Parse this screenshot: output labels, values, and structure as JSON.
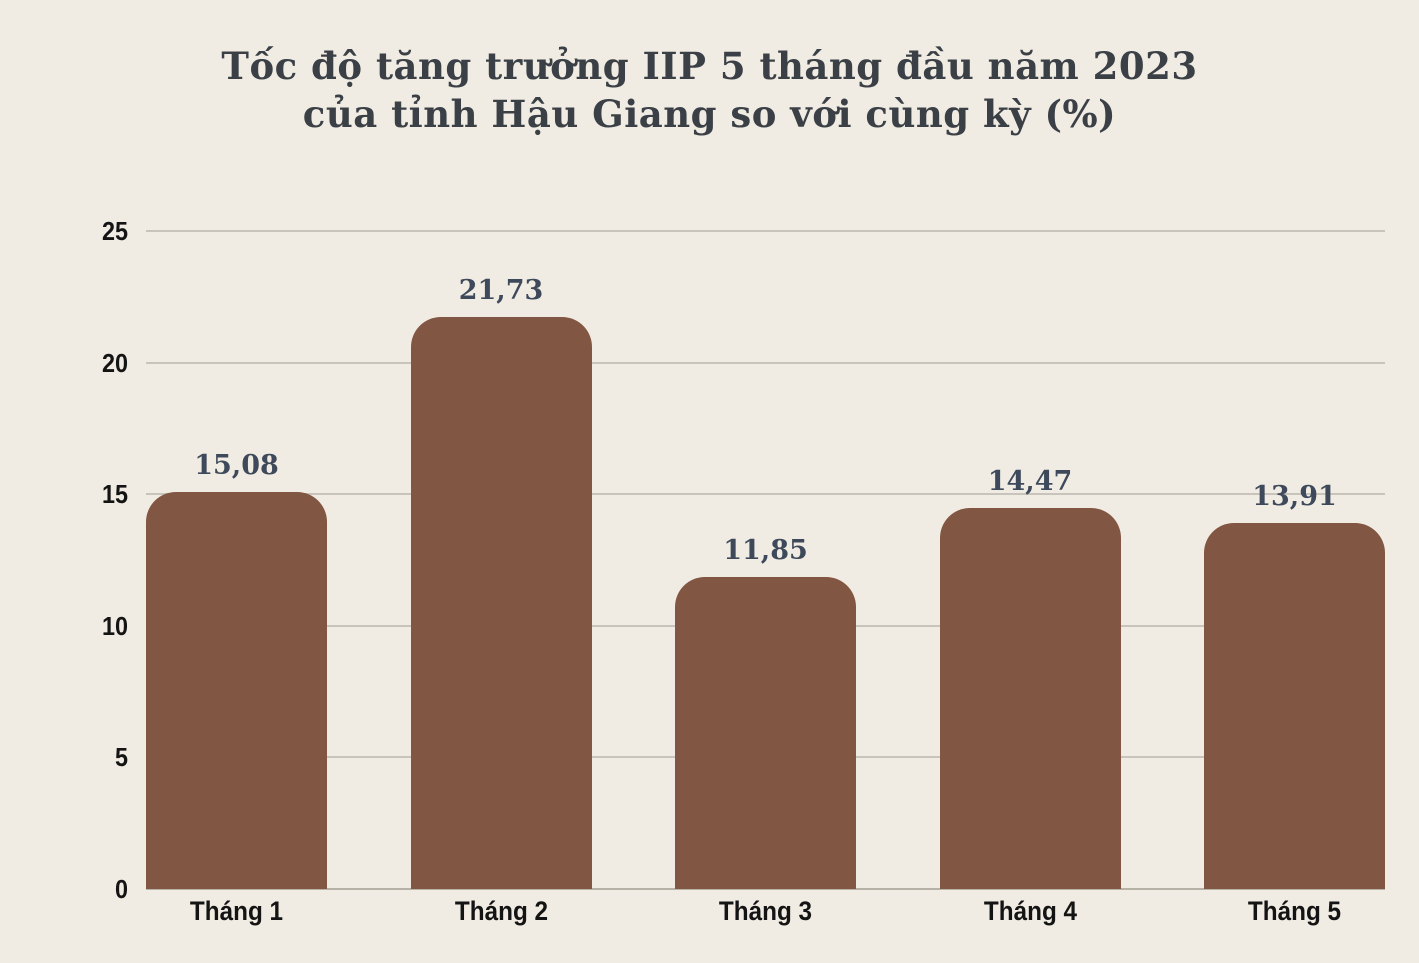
{
  "background_color": "#F1ECE3",
  "chart_data": {
    "type": "bar",
    "title_line1": "Tốc độ tăng trưởng IIP 5 tháng đầu năm 2023",
    "title_line2": "của tỉnh Hậu Giang so với cùng kỳ (%)",
    "categories": [
      "Tháng 1",
      "Tháng 2",
      "Tháng 3",
      "Tháng 4",
      "Tháng 5"
    ],
    "values": [
      15.08,
      21.73,
      11.85,
      14.47,
      13.91
    ],
    "value_labels": [
      "15,08",
      "21,73",
      "11,85",
      "14,47",
      "13,91"
    ],
    "y_ticks": [
      0,
      5,
      10,
      15,
      20,
      25
    ],
    "y_tick_labels": [
      "0",
      "5",
      "10",
      "15",
      "20",
      "25"
    ],
    "ylim": [
      0,
      25
    ],
    "xlabel": "",
    "ylabel": "",
    "grid": true,
    "legend": "none",
    "bar_color": "#815642",
    "value_label_color": "#3E4A5B",
    "title_color": "#3A4046",
    "axis_text_color": "#141414",
    "gridline_color": "#C8C4BB",
    "baseline_color": "#B7B2A8"
  }
}
